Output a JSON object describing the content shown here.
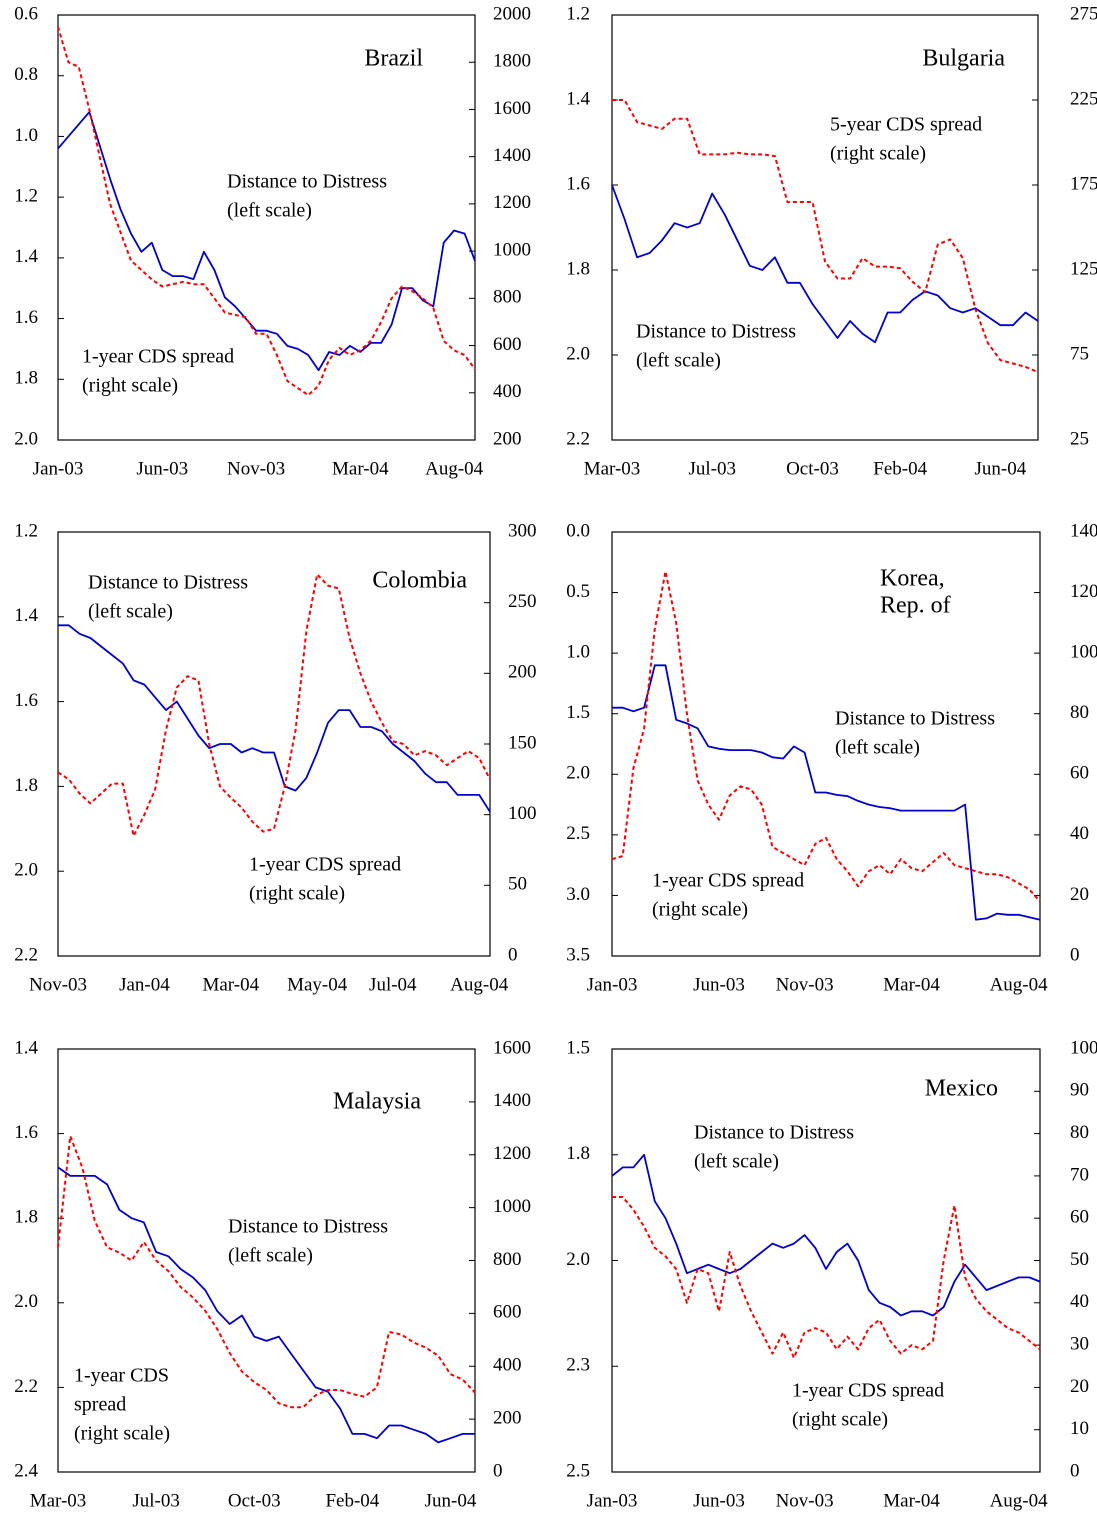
{
  "chart_data": [
    {
      "type": "line",
      "title": "Brazil",
      "categories": [
        "Jan-03",
        null,
        null,
        null,
        null,
        null,
        null,
        null,
        null,
        null,
        "Jun-03",
        null,
        null,
        null,
        null,
        null,
        null,
        null,
        null,
        "Nov-03",
        null,
        null,
        null,
        null,
        null,
        null,
        null,
        null,
        null,
        "Mar-04",
        null,
        null,
        null,
        null,
        null,
        null,
        null,
        null,
        "Aug-04",
        null,
        null
      ],
      "series": [
        {
          "name": "Distance to Distress",
          "scale": "(left scale)",
          "color": "#0000cc",
          "line_style": "solid",
          "values": [
            1.04,
            1.0,
            0.96,
            0.92,
            1.03,
            1.14,
            1.24,
            1.32,
            1.38,
            1.35,
            1.44,
            1.46,
            1.46,
            1.47,
            1.38,
            1.44,
            1.53,
            1.56,
            1.6,
            1.64,
            1.64,
            1.65,
            1.69,
            1.7,
            1.72,
            1.77,
            1.71,
            1.72,
            1.69,
            1.71,
            1.68,
            1.68,
            1.62,
            1.5,
            1.5,
            1.54,
            1.56,
            1.35,
            1.31,
            1.32,
            1.41
          ]
        },
        {
          "name": "1-year CDS spread",
          "scale": "(right scale)",
          "color": "#ff0000",
          "line_style": "dashed",
          "axis": "y2",
          "values": [
            1950,
            1800,
            1780,
            1600,
            1400,
            1200,
            1080,
            960,
            920,
            880,
            850,
            860,
            870,
            860,
            860,
            800,
            740,
            730,
            720,
            650,
            650,
            560,
            450,
            420,
            390,
            430,
            540,
            590,
            560,
            580,
            620,
            700,
            800,
            850,
            830,
            800,
            760,
            620,
            580,
            560,
            500
          ]
        }
      ],
      "ylim": [
        2.0,
        0.6
      ],
      "yticks": [
        0.6,
        0.8,
        {
          "value": 1,
          "label": "1.0"
        },
        1.2,
        1.4,
        1.6,
        1.8,
        {
          "value": 2,
          "label": "2.0"
        }
      ],
      "y2lim": [
        200,
        2000
      ],
      "y2ticks": [
        200,
        400,
        600,
        800,
        1000,
        1200,
        1400,
        1600,
        1800,
        2000
      ]
    },
    {
      "type": "line",
      "title": "Bulgaria",
      "categories": [
        "Mar-03",
        null,
        null,
        null,
        null,
        null,
        null,
        null,
        "Jul-03",
        null,
        null,
        null,
        null,
        null,
        null,
        null,
        "Oct-03",
        null,
        null,
        null,
        null,
        null,
        null,
        "Feb-04",
        null,
        null,
        null,
        null,
        null,
        null,
        null,
        "Jun-04",
        null,
        null,
        null
      ],
      "series": [
        {
          "name": "Distance to Distress",
          "scale": "(left scale)",
          "color": "#0000cc",
          "line_style": "solid",
          "values": [
            1.6,
            1.68,
            1.77,
            1.76,
            1.73,
            1.69,
            1.7,
            1.69,
            1.62,
            1.67,
            1.73,
            1.79,
            1.8,
            1.77,
            1.83,
            1.83,
            1.88,
            1.92,
            1.96,
            1.92,
            1.95,
            1.97,
            1.9,
            1.9,
            1.87,
            1.85,
            1.86,
            1.89,
            1.9,
            1.89,
            1.91,
            1.93,
            1.93,
            1.9,
            1.92
          ]
        },
        {
          "name": "5-year CDS spread",
          "scale": "(right scale)",
          "color": "#ff0000",
          "line_style": "dashed",
          "axis": "y2",
          "values": [
            225,
            225,
            212,
            210,
            208,
            214,
            214,
            193,
            193,
            193,
            194,
            193,
            193,
            192,
            165,
            165,
            165,
            130,
            120,
            120,
            132,
            127,
            127,
            126,
            118,
            112,
            140,
            143,
            132,
            102,
            82,
            72,
            70,
            68,
            65
          ]
        }
      ],
      "ylim": [
        2.2,
        1.2
      ],
      "yticks": [
        1.2,
        1.4,
        1.6,
        1.8,
        {
          "value": 2,
          "label": "2.0"
        },
        2.2
      ],
      "y2lim": [
        25,
        275
      ],
      "y2ticks": [
        25,
        75,
        125,
        175,
        225,
        275
      ]
    },
    {
      "type": "line",
      "title": "Colombia",
      "categories": [
        "Nov-03",
        null,
        null,
        null,
        null,
        null,
        null,
        null,
        "Jan-04",
        null,
        null,
        null,
        null,
        null,
        null,
        null,
        "Mar-04",
        null,
        null,
        null,
        null,
        null,
        null,
        null,
        "May-04",
        null,
        null,
        null,
        null,
        null,
        null,
        "Jul-04",
        null,
        null,
        null,
        null,
        null,
        null,
        null,
        "Aug-04",
        null
      ],
      "series": [
        {
          "name": "Distance to Distress",
          "scale": "(left scale)",
          "color": "#0000cc",
          "line_style": "solid",
          "values": [
            1.42,
            1.42,
            1.44,
            1.45,
            1.47,
            1.49,
            1.51,
            1.55,
            1.56,
            1.59,
            1.62,
            1.6,
            1.64,
            1.68,
            1.71,
            1.7,
            1.7,
            1.72,
            1.71,
            1.72,
            1.72,
            1.8,
            1.81,
            1.78,
            1.72,
            1.65,
            1.62,
            1.62,
            1.66,
            1.66,
            1.67,
            1.7,
            1.72,
            1.74,
            1.77,
            1.79,
            1.79,
            1.82,
            1.82,
            1.82,
            1.86
          ]
        },
        {
          "name": "1-year CDS spread",
          "scale": "(right scale)",
          "color": "#ff0000",
          "line_style": "dashed",
          "axis": "y2",
          "values": [
            130,
            125,
            115,
            108,
            115,
            122,
            122,
            85,
            100,
            118,
            160,
            190,
            198,
            195,
            150,
            120,
            112,
            105,
            95,
            88,
            90,
            120,
            160,
            230,
            270,
            262,
            260,
            225,
            200,
            180,
            165,
            152,
            150,
            142,
            145,
            142,
            135,
            140,
            145,
            140,
            125
          ]
        }
      ],
      "ylim": [
        2.2,
        1.2
      ],
      "yticks": [
        1.2,
        1.4,
        1.6,
        1.8,
        {
          "value": 2,
          "label": "2.0"
        },
        2.2
      ],
      "y2lim": [
        0,
        300
      ],
      "y2ticks": [
        0,
        50,
        100,
        150,
        200,
        250,
        300
      ]
    },
    {
      "type": "line",
      "title": [
        "Korea,",
        "Rep. of"
      ],
      "categories": [
        "Jan-03",
        null,
        null,
        null,
        null,
        null,
        null,
        null,
        null,
        null,
        "Jun-03",
        null,
        null,
        null,
        null,
        null,
        null,
        null,
        "Nov-03",
        null,
        null,
        null,
        null,
        null,
        null,
        null,
        null,
        null,
        "Mar-04",
        null,
        null,
        null,
        null,
        null,
        null,
        null,
        null,
        null,
        "Aug-04",
        null,
        null
      ],
      "series": [
        {
          "name": "Distance to Distress",
          "scale": "(left scale)",
          "color": "#0000cc",
          "line_style": "solid",
          "values": [
            1.45,
            1.45,
            1.48,
            1.45,
            1.1,
            1.1,
            1.55,
            1.58,
            1.62,
            1.77,
            1.79,
            1.8,
            1.8,
            1.8,
            1.82,
            1.86,
            1.87,
            1.77,
            1.82,
            2.15,
            2.15,
            2.17,
            2.18,
            2.22,
            2.25,
            2.27,
            2.28,
            2.3,
            2.3,
            2.3,
            2.3,
            2.3,
            2.3,
            2.25,
            3.2,
            3.19,
            3.15,
            3.16,
            3.16,
            3.18,
            3.2
          ]
        },
        {
          "name": "1-year CDS spread",
          "scale": "(right scale)",
          "color": "#ff0000",
          "line_style": "dashed",
          "axis": "y2",
          "values": [
            32,
            33,
            62,
            75,
            108,
            127,
            110,
            80,
            58,
            50,
            45,
            53,
            56,
            55,
            50,
            36,
            34,
            32,
            30,
            37,
            39,
            32,
            28,
            23,
            28,
            30,
            27,
            32,
            29,
            28,
            31,
            34,
            30,
            29,
            28,
            27,
            27,
            26,
            24,
            22,
            18
          ]
        }
      ],
      "ylim": [
        3.5,
        0
      ],
      "yticks": [
        {
          "value": 0,
          "label": "0.0"
        },
        0.5,
        {
          "value": 1,
          "label": "1.0"
        },
        1.5,
        {
          "value": 2,
          "label": "2.0"
        },
        2.5,
        {
          "value": 3,
          "label": "3.0"
        },
        3.5
      ],
      "y2lim": [
        0,
        140
      ],
      "y2ticks": [
        0,
        20,
        40,
        60,
        80,
        100,
        120,
        140
      ]
    },
    {
      "type": "line",
      "title": "Malaysia",
      "categories": [
        "Mar-03",
        null,
        null,
        null,
        null,
        null,
        null,
        null,
        "Jul-03",
        null,
        null,
        null,
        null,
        null,
        null,
        null,
        "Oct-03",
        null,
        null,
        null,
        null,
        null,
        null,
        null,
        "Feb-04",
        null,
        null,
        null,
        null,
        null,
        null,
        null,
        "Jun-04",
        null,
        null
      ],
      "series": [
        {
          "name": "Distance to Distress",
          "scale": "(left scale)",
          "color": "#0000cc",
          "line_style": "solid",
          "values": [
            1.68,
            1.7,
            1.7,
            1.7,
            1.72,
            1.78,
            1.8,
            1.81,
            1.88,
            1.89,
            1.92,
            1.94,
            1.97,
            2.02,
            2.05,
            2.03,
            2.08,
            2.09,
            2.08,
            2.12,
            2.16,
            2.2,
            2.21,
            2.25,
            2.31,
            2.31,
            2.32,
            2.29,
            2.29,
            2.3,
            2.31,
            2.33,
            2.32,
            2.31,
            2.31
          ]
        },
        {
          "name": [
            "1-year CDS",
            "spread"
          ],
          "scale": "(right scale)",
          "color": "#ff0000",
          "line_style": "dashed",
          "axis": "y2",
          "values": [
            850,
            1270,
            1150,
            950,
            850,
            830,
            800,
            870,
            800,
            760,
            700,
            660,
            610,
            540,
            450,
            380,
            340,
            310,
            260,
            245,
            245,
            290,
            310,
            310,
            295,
            285,
            320,
            530,
            520,
            490,
            470,
            440,
            370,
            350,
            300
          ]
        }
      ],
      "ylim": [
        2.4,
        1.4
      ],
      "yticks": [
        1.4,
        1.6,
        1.8,
        {
          "value": 2,
          "label": "2.0"
        },
        2.2,
        2.4
      ],
      "y2lim": [
        0,
        1600
      ],
      "y2ticks": [
        0,
        200,
        400,
        600,
        800,
        1000,
        1200,
        1400,
        1600
      ]
    },
    {
      "type": "line",
      "title": "Mexico",
      "categories": [
        "Jan-03",
        null,
        null,
        null,
        null,
        null,
        null,
        null,
        null,
        null,
        "Jun-03",
        null,
        null,
        null,
        null,
        null,
        null,
        null,
        "Nov-03",
        null,
        null,
        null,
        null,
        null,
        null,
        null,
        null,
        null,
        "Mar-04",
        null,
        null,
        null,
        null,
        null,
        null,
        null,
        null,
        null,
        "Aug-04",
        null,
        null
      ],
      "series": [
        {
          "name": "Distance to Distress",
          "scale": "(left scale)",
          "color": "#0000cc",
          "line_style": "solid",
          "values": [
            1.8,
            1.78,
            1.78,
            1.75,
            1.86,
            1.9,
            1.96,
            2.03,
            2.02,
            2.01,
            2.02,
            2.03,
            2.02,
            2.0,
            1.98,
            1.96,
            1.97,
            1.96,
            1.94,
            1.97,
            2.02,
            1.98,
            1.96,
            2.0,
            2.07,
            2.1,
            2.11,
            2.13,
            2.12,
            2.12,
            2.13,
            2.11,
            2.05,
            2.01,
            2.04,
            2.07,
            2.06,
            2.05,
            2.04,
            2.04,
            2.05
          ]
        },
        {
          "name": "1-year CDS spread",
          "scale": "(right scale)",
          "color": "#ff0000",
          "line_style": "dashed",
          "axis": "y2",
          "values": [
            65,
            65,
            62,
            58,
            53,
            51,
            48,
            40,
            48,
            47,
            38,
            52,
            44,
            38,
            33,
            28,
            33,
            27,
            33,
            34,
            33,
            29,
            32,
            29,
            34,
            36,
            31,
            28,
            30,
            29,
            31,
            50,
            63,
            46,
            41,
            38,
            36,
            34,
            33,
            31,
            29
          ]
        }
      ],
      "ylim": [
        2.5,
        1.5
      ],
      "yticks": [
        1.5,
        {
          "value": 1.75,
          "label": "1.8"
        },
        {
          "value": 2,
          "label": "2.0"
        },
        {
          "value": 2.25,
          "label": "2.3"
        },
        2.5
      ],
      "y2lim": [
        0,
        100
      ],
      "y2ticks": [
        0,
        10,
        20,
        30,
        40,
        50,
        60,
        70,
        80,
        90,
        100
      ]
    }
  ]
}
